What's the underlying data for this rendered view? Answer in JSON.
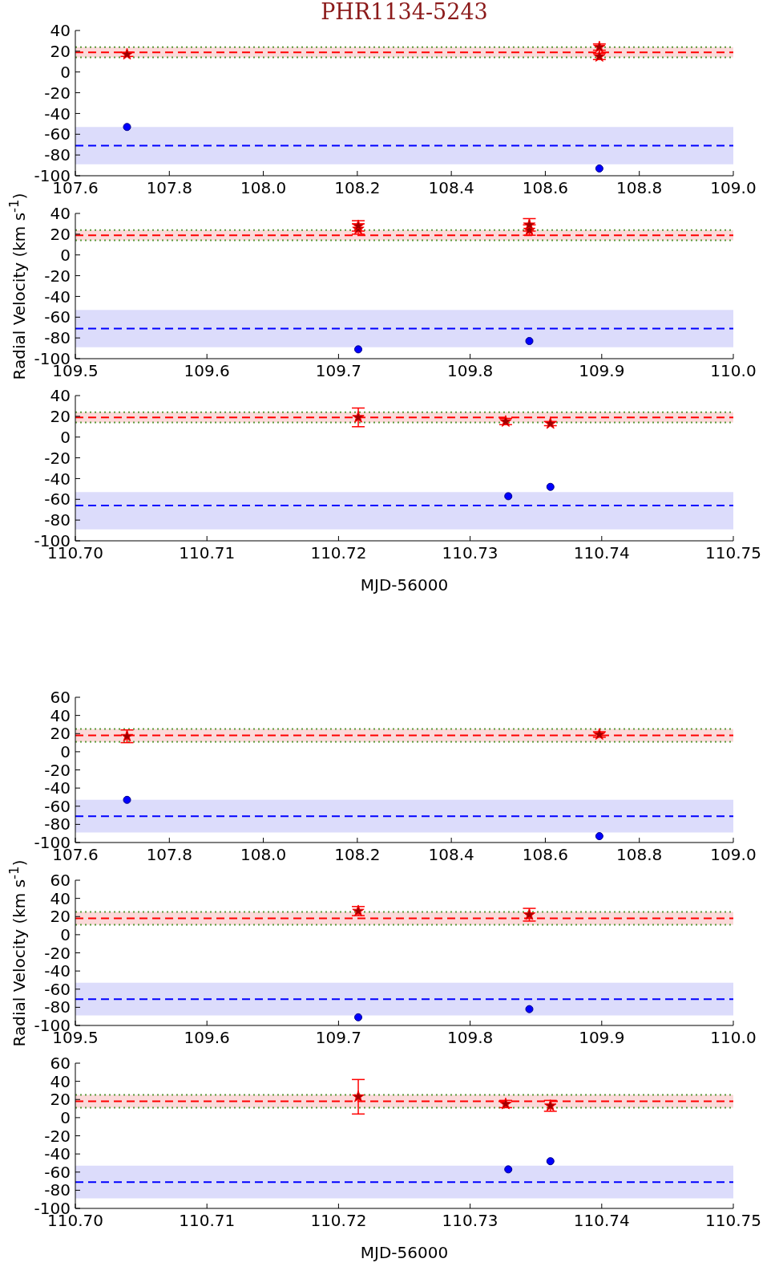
{
  "chart_data": [
    {
      "type": "scatter",
      "title": "PHR1134-5243",
      "xlim": [
        107.6,
        109.0
      ],
      "xticks": [
        {
          "value": 107.6,
          "label": "107.6"
        },
        {
          "value": 107.8,
          "label": "107.8"
        },
        {
          "value": 108.0,
          "label": "108.0"
        },
        {
          "value": 108.2,
          "label": "108.2"
        },
        {
          "value": 108.4,
          "label": "108.4"
        },
        {
          "value": 108.6,
          "label": "108.6"
        },
        {
          "value": 108.8,
          "label": "108.8"
        },
        {
          "value": 109.0,
          "label": "109.0"
        }
      ],
      "ylim": [
        -100,
        40
      ],
      "yticks": [
        -100,
        -80,
        -60,
        -40,
        -20,
        0,
        20,
        40
      ],
      "grid": false,
      "series": [
        {
          "color": "#a00000",
          "marker": "star",
          "x": [
            107.71,
            108.715,
            108.715
          ],
          "values": [
            17,
            24,
            15
          ],
          "errors": [
            2,
            3,
            3
          ]
        },
        {
          "color": "#0000ff",
          "marker": "circle",
          "x": [
            107.71,
            108.715
          ],
          "values": [
            -53,
            -93
          ]
        }
      ],
      "bands": [
        {
          "axis": "y",
          "from": 14,
          "to": 24,
          "color": "#fbdada"
        },
        {
          "axis": "y",
          "from": -89,
          "to": -53,
          "color": "#dcdcfb"
        }
      ],
      "ref_lines": [
        {
          "axis": "y",
          "value": 19,
          "color": "#ff0000",
          "line_style": "dashed"
        },
        {
          "axis": "y",
          "value": 24,
          "color": "#5a9a3a",
          "line_style": "dotted"
        },
        {
          "axis": "y",
          "value": 14,
          "color": "#5a9a3a",
          "line_style": "dotted"
        },
        {
          "axis": "y",
          "value": -71,
          "color": "#0000ff",
          "line_style": "dashed"
        }
      ]
    },
    {
      "type": "scatter",
      "ylabel": "Radial Velocity (km s$^{-1}$)",
      "xlim": [
        109.5,
        110.0
      ],
      "xticks": [
        {
          "value": 109.5,
          "label": "109.5"
        },
        {
          "value": 109.6,
          "label": "109.6"
        },
        {
          "value": 109.7,
          "label": "109.7"
        },
        {
          "value": 109.8,
          "label": "109.8"
        },
        {
          "value": 109.9,
          "label": "109.9"
        },
        {
          "value": 110.0,
          "label": "110.0"
        }
      ],
      "ylim": [
        -100,
        40
      ],
      "yticks": [
        -100,
        -80,
        -60,
        -40,
        -20,
        0,
        20,
        40
      ],
      "grid": false,
      "series": [
        {
          "color": "#a00000",
          "marker": "star",
          "x": [
            109.715,
            109.715,
            109.845,
            109.845
          ],
          "values": [
            25,
            28,
            24,
            29
          ],
          "errors": [
            5,
            5,
            5,
            6
          ]
        },
        {
          "color": "#0000ff",
          "marker": "circle",
          "x": [
            109.715,
            109.845
          ],
          "values": [
            -91,
            -83
          ]
        }
      ],
      "bands": [
        {
          "axis": "y",
          "from": 14,
          "to": 24,
          "color": "#fbdada"
        },
        {
          "axis": "y",
          "from": -89,
          "to": -53,
          "color": "#dcdcfb"
        }
      ],
      "ref_lines": [
        {
          "axis": "y",
          "value": 19,
          "color": "#ff0000",
          "line_style": "dashed"
        },
        {
          "axis": "y",
          "value": 24,
          "color": "#5a9a3a",
          "line_style": "dotted"
        },
        {
          "axis": "y",
          "value": 14,
          "color": "#5a9a3a",
          "line_style": "dotted"
        },
        {
          "axis": "y",
          "value": -71,
          "color": "#0000ff",
          "line_style": "dashed"
        }
      ]
    },
    {
      "type": "scatter",
      "xlabel": "MJD-56000",
      "xlim": [
        110.7,
        110.75
      ],
      "xticks": [
        {
          "value": 110.7,
          "label": "110.70"
        },
        {
          "value": 110.71,
          "label": "110.71"
        },
        {
          "value": 110.72,
          "label": "110.72"
        },
        {
          "value": 110.73,
          "label": "110.73"
        },
        {
          "value": 110.74,
          "label": "110.74"
        },
        {
          "value": 110.75,
          "label": "110.75"
        }
      ],
      "ylim": [
        -100,
        40
      ],
      "yticks": [
        -100,
        -80,
        -60,
        -40,
        -20,
        0,
        20,
        40
      ],
      "grid": false,
      "series": [
        {
          "color": "#a00000",
          "marker": "star",
          "x": [
            110.7215,
            110.7327,
            110.7361
          ],
          "values": [
            19,
            15,
            13
          ],
          "errors": [
            9,
            3,
            2
          ]
        },
        {
          "color": "#0000ff",
          "marker": "circle",
          "x": [
            110.7329,
            110.7361
          ],
          "values": [
            -57,
            -48
          ]
        }
      ],
      "bands": [
        {
          "axis": "y",
          "from": 14,
          "to": 24,
          "color": "#fbdada"
        },
        {
          "axis": "y",
          "from": -89,
          "to": -53,
          "color": "#dcdcfb"
        }
      ],
      "ref_lines": [
        {
          "axis": "y",
          "value": 19,
          "color": "#ff0000",
          "line_style": "dashed"
        },
        {
          "axis": "y",
          "value": 24,
          "color": "#5a9a3a",
          "line_style": "dotted"
        },
        {
          "axis": "y",
          "value": 14,
          "color": "#5a9a3a",
          "line_style": "dotted"
        },
        {
          "axis": "y",
          "value": -66,
          "color": "#0000ff",
          "line_style": "dashed"
        }
      ]
    },
    {
      "type": "scatter",
      "xlim": [
        107.6,
        109.0
      ],
      "xticks": [
        {
          "value": 107.6,
          "label": "107.6"
        },
        {
          "value": 107.8,
          "label": "107.8"
        },
        {
          "value": 108.0,
          "label": "108.0"
        },
        {
          "value": 108.2,
          "label": "108.2"
        },
        {
          "value": 108.4,
          "label": "108.4"
        },
        {
          "value": 108.6,
          "label": "108.6"
        },
        {
          "value": 108.8,
          "label": "108.8"
        },
        {
          "value": 109.0,
          "label": "109.0"
        }
      ],
      "ylim": [
        -100,
        60
      ],
      "yticks": [
        -100,
        -80,
        -60,
        -40,
        -20,
        0,
        20,
        40,
        60
      ],
      "grid": false,
      "series": [
        {
          "color": "#a00000",
          "marker": "star",
          "x": [
            107.71,
            108.715
          ],
          "values": [
            17,
            19
          ],
          "errors": [
            7,
            3
          ]
        },
        {
          "color": "#0000ff",
          "marker": "circle",
          "x": [
            107.71,
            108.715
          ],
          "values": [
            -53,
            -93
          ]
        }
      ],
      "bands": [
        {
          "axis": "y",
          "from": 11,
          "to": 25,
          "color": "#fbdada"
        },
        {
          "axis": "y",
          "from": -89,
          "to": -53,
          "color": "#dcdcfb"
        }
      ],
      "ref_lines": [
        {
          "axis": "y",
          "value": 18,
          "color": "#ff0000",
          "line_style": "dashed"
        },
        {
          "axis": "y",
          "value": 25,
          "color": "#5a9a3a",
          "line_style": "dotted"
        },
        {
          "axis": "y",
          "value": 11,
          "color": "#5a9a3a",
          "line_style": "dotted"
        },
        {
          "axis": "y",
          "value": -71,
          "color": "#0000ff",
          "line_style": "dashed"
        }
      ]
    },
    {
      "type": "scatter",
      "ylabel": "Radial Velocity (km s$^{-1}$)",
      "xlim": [
        109.5,
        110.0
      ],
      "xticks": [
        {
          "value": 109.5,
          "label": "109.5"
        },
        {
          "value": 109.6,
          "label": "109.6"
        },
        {
          "value": 109.7,
          "label": "109.7"
        },
        {
          "value": 109.8,
          "label": "109.8"
        },
        {
          "value": 109.9,
          "label": "109.9"
        },
        {
          "value": 110.0,
          "label": "110.0"
        }
      ],
      "ylim": [
        -100,
        60
      ],
      "yticks": [
        -100,
        -80,
        -60,
        -40,
        -20,
        0,
        20,
        40,
        60
      ],
      "grid": false,
      "series": [
        {
          "color": "#a00000",
          "marker": "star",
          "x": [
            109.715,
            109.845
          ],
          "values": [
            26,
            22
          ],
          "errors": [
            5,
            7
          ]
        },
        {
          "color": "#0000ff",
          "marker": "circle",
          "x": [
            109.715,
            109.845
          ],
          "values": [
            -91,
            -82
          ]
        }
      ],
      "bands": [
        {
          "axis": "y",
          "from": 11,
          "to": 25,
          "color": "#fbdada"
        },
        {
          "axis": "y",
          "from": -89,
          "to": -53,
          "color": "#dcdcfb"
        }
      ],
      "ref_lines": [
        {
          "axis": "y",
          "value": 18,
          "color": "#ff0000",
          "line_style": "dashed"
        },
        {
          "axis": "y",
          "value": 25,
          "color": "#5a9a3a",
          "line_style": "dotted"
        },
        {
          "axis": "y",
          "value": 11,
          "color": "#5a9a3a",
          "line_style": "dotted"
        },
        {
          "axis": "y",
          "value": -71,
          "color": "#0000ff",
          "line_style": "dashed"
        }
      ]
    },
    {
      "type": "scatter",
      "xlabel": "MJD-56000",
      "xlim": [
        110.7,
        110.75
      ],
      "xticks": [
        {
          "value": 110.7,
          "label": "110.70"
        },
        {
          "value": 110.71,
          "label": "110.71"
        },
        {
          "value": 110.72,
          "label": "110.72"
        },
        {
          "value": 110.73,
          "label": "110.73"
        },
        {
          "value": 110.74,
          "label": "110.74"
        },
        {
          "value": 110.75,
          "label": "110.75"
        }
      ],
      "ylim": [
        -100,
        60
      ],
      "yticks": [
        -100,
        -80,
        -60,
        -40,
        -20,
        0,
        20,
        40,
        60
      ],
      "grid": false,
      "series": [
        {
          "color": "#a00000",
          "marker": "star",
          "x": [
            110.7215,
            110.7327,
            110.7361
          ],
          "values": [
            23,
            15,
            13
          ],
          "errors": [
            19,
            4,
            6
          ]
        },
        {
          "color": "#0000ff",
          "marker": "circle",
          "x": [
            110.7329,
            110.7361
          ],
          "values": [
            -57,
            -48
          ]
        }
      ],
      "bands": [
        {
          "axis": "y",
          "from": 11,
          "to": 25,
          "color": "#fbdada"
        },
        {
          "axis": "y",
          "from": -89,
          "to": -53,
          "color": "#dcdcfb"
        }
      ],
      "ref_lines": [
        {
          "axis": "y",
          "value": 18,
          "color": "#ff0000",
          "line_style": "dashed"
        },
        {
          "axis": "y",
          "value": 25,
          "color": "#5a9a3a",
          "line_style": "dotted"
        },
        {
          "axis": "y",
          "value": 11,
          "color": "#5a9a3a",
          "line_style": "dotted"
        },
        {
          "axis": "y",
          "value": -71,
          "color": "#0000ff",
          "line_style": "dashed"
        }
      ]
    }
  ]
}
